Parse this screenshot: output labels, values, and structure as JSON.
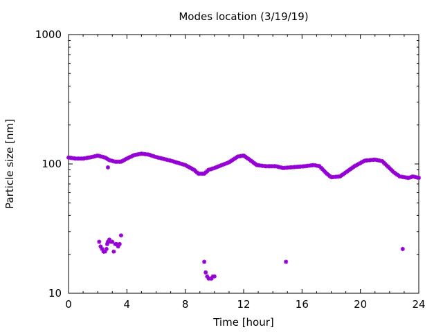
{
  "chart_data": {
    "type": "scatter",
    "title": "Modes location (3/19/19)",
    "xlabel": "Time [hour]",
    "ylabel": "Particle size [nm]",
    "xlim": [
      0,
      24
    ],
    "ylim": [
      10,
      1000
    ],
    "yscale": "log",
    "xticks": [
      "0",
      "4",
      "8",
      "12",
      "16",
      "20",
      "24"
    ],
    "yticks": [
      "10",
      "100",
      "1000"
    ],
    "marker_color": "#9400D3",
    "grid": false,
    "legend": "none",
    "main_mode_anchors": [
      [
        0.0,
        112
      ],
      [
        0.5,
        110
      ],
      [
        1.0,
        110
      ],
      [
        1.6,
        113
      ],
      [
        2.0,
        116
      ],
      [
        2.5,
        112
      ],
      [
        2.8,
        107
      ],
      [
        3.2,
        104
      ],
      [
        3.6,
        104
      ],
      [
        4.0,
        110
      ],
      [
        4.5,
        117
      ],
      [
        5.0,
        120
      ],
      [
        5.5,
        118
      ],
      [
        6.0,
        113
      ],
      [
        7.0,
        106
      ],
      [
        8.0,
        98
      ],
      [
        8.6,
        90
      ],
      [
        8.9,
        84
      ],
      [
        9.3,
        84
      ],
      [
        9.6,
        90
      ],
      [
        10.0,
        93
      ],
      [
        11.0,
        103
      ],
      [
        11.6,
        114
      ],
      [
        12.0,
        116
      ],
      [
        12.4,
        108
      ],
      [
        12.9,
        98
      ],
      [
        13.5,
        96
      ],
      [
        14.2,
        96
      ],
      [
        14.7,
        93
      ],
      [
        15.2,
        94
      ],
      [
        16.2,
        96
      ],
      [
        16.8,
        98
      ],
      [
        17.2,
        96
      ],
      [
        17.7,
        84
      ],
      [
        18.0,
        79
      ],
      [
        18.6,
        80
      ],
      [
        19.0,
        86
      ],
      [
        19.6,
        96
      ],
      [
        20.3,
        106
      ],
      [
        21.0,
        108
      ],
      [
        21.5,
        105
      ],
      [
        21.9,
        95
      ],
      [
        22.3,
        86
      ],
      [
        22.7,
        80
      ],
      [
        23.3,
        78
      ],
      [
        23.6,
        80
      ],
      [
        24.0,
        78
      ]
    ],
    "secondary_points": [
      [
        2.1,
        25
      ],
      [
        2.2,
        23
      ],
      [
        2.3,
        22
      ],
      [
        2.4,
        21
      ],
      [
        2.5,
        21
      ],
      [
        2.6,
        22
      ],
      [
        2.65,
        24
      ],
      [
        2.7,
        25
      ],
      [
        2.8,
        26
      ],
      [
        2.9,
        25
      ],
      [
        3.0,
        25
      ],
      [
        3.1,
        21
      ],
      [
        3.2,
        24
      ],
      [
        3.3,
        24
      ],
      [
        3.4,
        23
      ],
      [
        3.5,
        24
      ],
      [
        3.6,
        28
      ],
      [
        2.7,
        94
      ],
      [
        9.3,
        17.5
      ],
      [
        9.4,
        14.5
      ],
      [
        9.5,
        13.5
      ],
      [
        9.6,
        13
      ],
      [
        9.7,
        13
      ],
      [
        9.8,
        13
      ],
      [
        9.9,
        13.5
      ],
      [
        10.0,
        13.5
      ],
      [
        14.9,
        17.5
      ],
      [
        22.9,
        22
      ]
    ]
  }
}
